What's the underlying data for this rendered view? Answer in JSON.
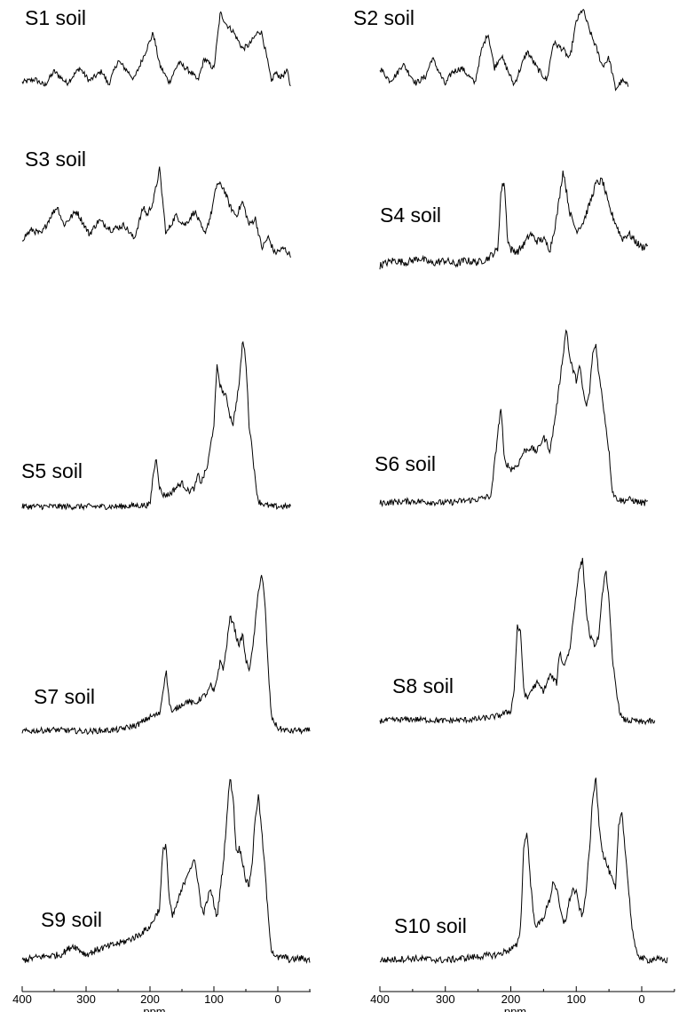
{
  "chart_data": {
    "type": "line",
    "xlabel": "ppm",
    "x_ticks": [
      "400",
      "300",
      "200",
      "100",
      "0"
    ],
    "xlim": [
      400,
      -50
    ],
    "x_reversed": true,
    "y_units": "relative intensity (no y-axis printed)",
    "spectra": [
      {
        "label": "S1 soil",
        "x": [
          400,
          380,
          365,
          350,
          330,
          310,
          295,
          275,
          265,
          250,
          235,
          225,
          200,
          195,
          185,
          170,
          155,
          135,
          125,
          115,
          100,
          90,
          80,
          70,
          55,
          45,
          30,
          25,
          15,
          10,
          5,
          -5,
          -15,
          -20
        ],
        "y": [
          0.08,
          0.12,
          0.04,
          0.22,
          0.07,
          0.26,
          0.1,
          0.22,
          0.05,
          0.35,
          0.22,
          0.12,
          0.6,
          0.7,
          0.3,
          0.08,
          0.33,
          0.2,
          0.1,
          0.38,
          0.25,
          0.95,
          0.8,
          0.72,
          0.5,
          0.55,
          0.72,
          0.7,
          0.3,
          0.08,
          0.2,
          0.15,
          0.22,
          0.02
        ]
      },
      {
        "label": "S2 soil",
        "x": [
          400,
          385,
          375,
          365,
          345,
          330,
          320,
          300,
          290,
          275,
          255,
          245,
          235,
          225,
          215,
          195,
          175,
          160,
          145,
          135,
          120,
          110,
          100,
          90,
          80,
          70,
          60,
          50,
          40,
          30,
          20
        ],
        "y": [
          0.3,
          0.15,
          0.22,
          0.35,
          0.12,
          0.2,
          0.42,
          0.1,
          0.25,
          0.3,
          0.12,
          0.5,
          0.72,
          0.3,
          0.45,
          0.1,
          0.5,
          0.3,
          0.15,
          0.6,
          0.52,
          0.4,
          0.85,
          1.0,
          0.75,
          0.55,
          0.32,
          0.42,
          0.05,
          0.15,
          0.08
        ]
      },
      {
        "label": "S3 soil",
        "x": [
          400,
          385,
          370,
          355,
          345,
          335,
          315,
          295,
          280,
          260,
          240,
          225,
          210,
          205,
          195,
          185,
          175,
          160,
          145,
          130,
          115,
          105,
          95,
          85,
          75,
          65,
          55,
          45,
          35,
          25,
          15,
          5,
          -10,
          -20
        ],
        "y": [
          0.2,
          0.3,
          0.25,
          0.45,
          0.55,
          0.35,
          0.5,
          0.25,
          0.4,
          0.3,
          0.35,
          0.2,
          0.55,
          0.45,
          0.6,
          0.95,
          0.25,
          0.45,
          0.35,
          0.5,
          0.25,
          0.45,
          0.8,
          0.75,
          0.55,
          0.45,
          0.6,
          0.35,
          0.42,
          0.1,
          0.22,
          0.05,
          0.1,
          0.02
        ]
      },
      {
        "label": "S4 soil",
        "x": [
          400,
          380,
          360,
          340,
          320,
          300,
          285,
          270,
          250,
          235,
          220,
          215,
          210,
          205,
          200,
          190,
          180,
          170,
          160,
          150,
          140,
          130,
          120,
          110,
          100,
          90,
          80,
          70,
          60,
          50,
          40,
          30,
          20,
          10,
          0,
          -10
        ],
        "y": [
          0.05,
          0.1,
          0.08,
          0.12,
          0.07,
          0.1,
          0.06,
          0.1,
          0.08,
          0.12,
          0.2,
          0.75,
          0.85,
          0.3,
          0.2,
          0.18,
          0.25,
          0.35,
          0.28,
          0.3,
          0.2,
          0.5,
          0.95,
          0.55,
          0.38,
          0.45,
          0.62,
          0.82,
          0.85,
          0.6,
          0.45,
          0.3,
          0.35,
          0.28,
          0.22,
          0.25
        ]
      },
      {
        "label": "S5 soil",
        "x": [
          400,
          350,
          300,
          250,
          200,
          195,
          190,
          185,
          180,
          170,
          160,
          150,
          140,
          130,
          125,
          120,
          110,
          100,
          95,
          90,
          80,
          75,
          70,
          60,
          55,
          50,
          45,
          40,
          35,
          30,
          20,
          10,
          0,
          -10,
          -20
        ],
        "y": [
          0.01,
          0.01,
          0.01,
          0.01,
          0.02,
          0.2,
          0.3,
          0.12,
          0.08,
          0.08,
          0.12,
          0.15,
          0.1,
          0.12,
          0.2,
          0.15,
          0.25,
          0.5,
          0.85,
          0.72,
          0.65,
          0.55,
          0.5,
          0.75,
          1.0,
          0.88,
          0.5,
          0.35,
          0.15,
          0.04,
          0.02,
          0.01,
          0.01,
          0.01,
          0.01
        ]
      },
      {
        "label": "S6 soil",
        "x": [
          400,
          350,
          300,
          250,
          230,
          220,
          215,
          210,
          200,
          190,
          180,
          170,
          160,
          150,
          145,
          140,
          130,
          120,
          115,
          110,
          100,
          95,
          90,
          85,
          80,
          75,
          70,
          65,
          60,
          50,
          45,
          40,
          30,
          20,
          10,
          0,
          -10
        ],
        "y": [
          0.01,
          0.02,
          0.01,
          0.03,
          0.05,
          0.4,
          0.55,
          0.25,
          0.2,
          0.22,
          0.3,
          0.32,
          0.3,
          0.38,
          0.35,
          0.3,
          0.55,
          0.85,
          1.0,
          0.82,
          0.7,
          0.78,
          0.65,
          0.55,
          0.62,
          0.85,
          0.9,
          0.72,
          0.6,
          0.3,
          0.08,
          0.04,
          0.02,
          0.03,
          0.02,
          0.01,
          0.01
        ]
      },
      {
        "label": "S7 soil",
        "x": [
          400,
          350,
          300,
          250,
          220,
          200,
          185,
          180,
          175,
          170,
          165,
          160,
          150,
          140,
          130,
          120,
          110,
          105,
          100,
          95,
          90,
          85,
          80,
          75,
          70,
          65,
          60,
          55,
          50,
          45,
          40,
          35,
          30,
          25,
          20,
          15,
          10,
          0,
          -10,
          -20,
          -30,
          -40,
          -50
        ],
        "y": [
          0.01,
          0.02,
          0.01,
          0.02,
          0.05,
          0.1,
          0.12,
          0.25,
          0.4,
          0.2,
          0.12,
          0.15,
          0.18,
          0.2,
          0.18,
          0.22,
          0.25,
          0.3,
          0.25,
          0.35,
          0.45,
          0.4,
          0.55,
          0.72,
          0.7,
          0.6,
          0.55,
          0.62,
          0.45,
          0.4,
          0.5,
          0.7,
          0.9,
          1.0,
          0.8,
          0.4,
          0.1,
          0.03,
          0.02,
          0.01,
          0.02,
          0.01,
          0.02
        ]
      },
      {
        "label": "S8 soil",
        "x": [
          400,
          350,
          300,
          250,
          220,
          200,
          195,
          190,
          185,
          180,
          175,
          170,
          160,
          150,
          140,
          130,
          125,
          120,
          110,
          100,
          95,
          90,
          85,
          80,
          75,
          70,
          65,
          60,
          55,
          50,
          45,
          40,
          35,
          30,
          20,
          10,
          0,
          -10,
          -20
        ],
        "y": [
          0.02,
          0.03,
          0.02,
          0.03,
          0.05,
          0.08,
          0.2,
          0.6,
          0.55,
          0.2,
          0.15,
          0.2,
          0.25,
          0.2,
          0.3,
          0.25,
          0.45,
          0.35,
          0.45,
          0.8,
          0.95,
          1.0,
          0.7,
          0.55,
          0.5,
          0.48,
          0.55,
          0.8,
          0.95,
          0.75,
          0.4,
          0.25,
          0.1,
          0.03,
          0.02,
          0.02,
          0.01,
          0.02,
          0.01
        ]
      },
      {
        "label": "S9 soil",
        "x": [
          400,
          370,
          340,
          320,
          300,
          280,
          260,
          240,
          220,
          200,
          185,
          180,
          175,
          170,
          165,
          160,
          150,
          140,
          130,
          125,
          120,
          115,
          110,
          105,
          100,
          95,
          90,
          85,
          80,
          75,
          70,
          65,
          60,
          55,
          50,
          45,
          40,
          35,
          30,
          25,
          20,
          15,
          10,
          5,
          0,
          -10,
          -20,
          -30,
          -40,
          -50
        ],
        "y": [
          0.02,
          0.04,
          0.05,
          0.1,
          0.05,
          0.08,
          0.1,
          0.12,
          0.15,
          0.2,
          0.3,
          0.6,
          0.65,
          0.35,
          0.25,
          0.3,
          0.4,
          0.5,
          0.55,
          0.45,
          0.3,
          0.28,
          0.35,
          0.4,
          0.32,
          0.25,
          0.4,
          0.55,
          0.78,
          1.0,
          0.9,
          0.6,
          0.62,
          0.55,
          0.45,
          0.42,
          0.55,
          0.8,
          0.9,
          0.7,
          0.5,
          0.25,
          0.08,
          0.05,
          0.03,
          0.04,
          0.02,
          0.03,
          0.03,
          0.02
        ]
      },
      {
        "label": "S10 soil",
        "x": [
          400,
          350,
          300,
          250,
          220,
          200,
          190,
          185,
          180,
          175,
          170,
          165,
          160,
          150,
          140,
          135,
          130,
          125,
          120,
          115,
          110,
          105,
          100,
          95,
          90,
          85,
          80,
          75,
          70,
          65,
          60,
          55,
          50,
          45,
          40,
          35,
          30,
          25,
          20,
          15,
          10,
          5,
          0,
          -10,
          -20,
          -30,
          -40
        ],
        "y": [
          0.02,
          0.03,
          0.02,
          0.04,
          0.05,
          0.08,
          0.1,
          0.2,
          0.65,
          0.7,
          0.45,
          0.25,
          0.2,
          0.25,
          0.35,
          0.45,
          0.4,
          0.3,
          0.22,
          0.25,
          0.35,
          0.4,
          0.38,
          0.3,
          0.25,
          0.4,
          0.6,
          0.88,
          1.0,
          0.75,
          0.6,
          0.55,
          0.5,
          0.45,
          0.4,
          0.75,
          0.82,
          0.6,
          0.4,
          0.2,
          0.08,
          0.05,
          0.03,
          0.02,
          0.03,
          0.02,
          0.02
        ]
      }
    ]
  }
}
